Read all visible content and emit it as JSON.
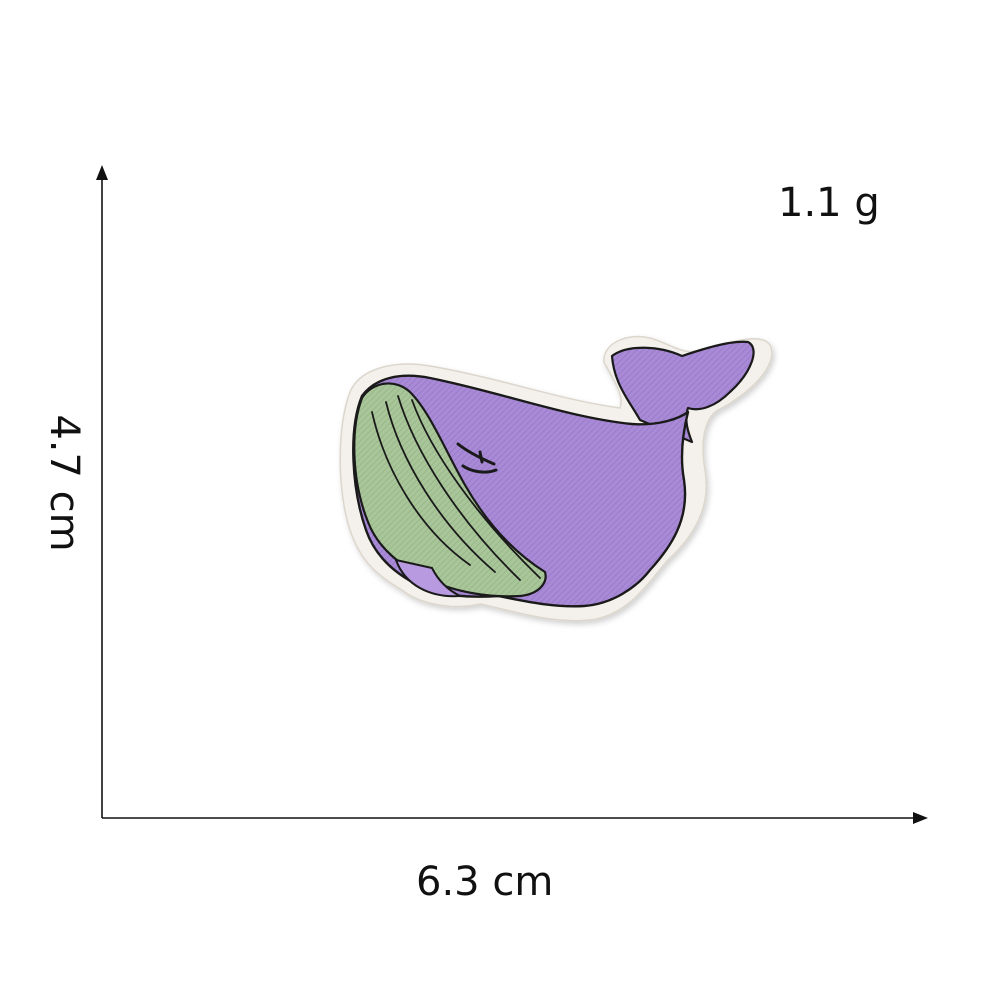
{
  "measurements": {
    "weight": "1.1 g",
    "width": "6.3 cm",
    "height": "4.7 cm"
  },
  "product": {
    "kind": "embroidered whale patch",
    "colors": {
      "body": "#a98ad6",
      "body_shadow": "#8f6fc4",
      "belly": "#a9c69a",
      "outline": "#1a1a1a",
      "backing": "#f4f1ec",
      "axis": "#111111"
    }
  }
}
